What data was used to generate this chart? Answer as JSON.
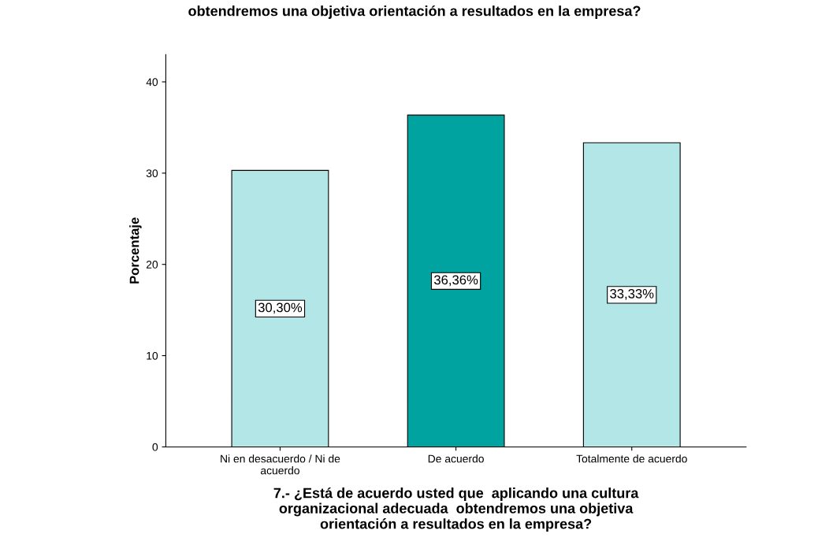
{
  "chart_data": {
    "type": "bar",
    "title": "obtendremos una objetiva orientación a resultados en la empresa?",
    "categories": [
      "Ni en desacuerdo / Ni de\nacuerdo",
      "De acuerdo",
      "Totalmente de acuerdo"
    ],
    "values": [
      30.3,
      36.36,
      33.33
    ],
    "colors": [
      "#b3e6e6",
      "#00a3a0",
      "#b3e6e6"
    ],
    "value_labels": [
      "30,30%",
      "36,36%",
      "33,33%"
    ],
    "ylabel": "Porcentaje",
    "xlabel": "7.- ¿Está de acuerdo usted que  aplicando una cultura\norganizacional adecuada  obtendremos una objetiva\norientación a resultados en la empresa?",
    "ylim": [
      0,
      43
    ],
    "yticks": [
      0,
      10,
      20,
      30,
      40
    ],
    "grid": false
  }
}
